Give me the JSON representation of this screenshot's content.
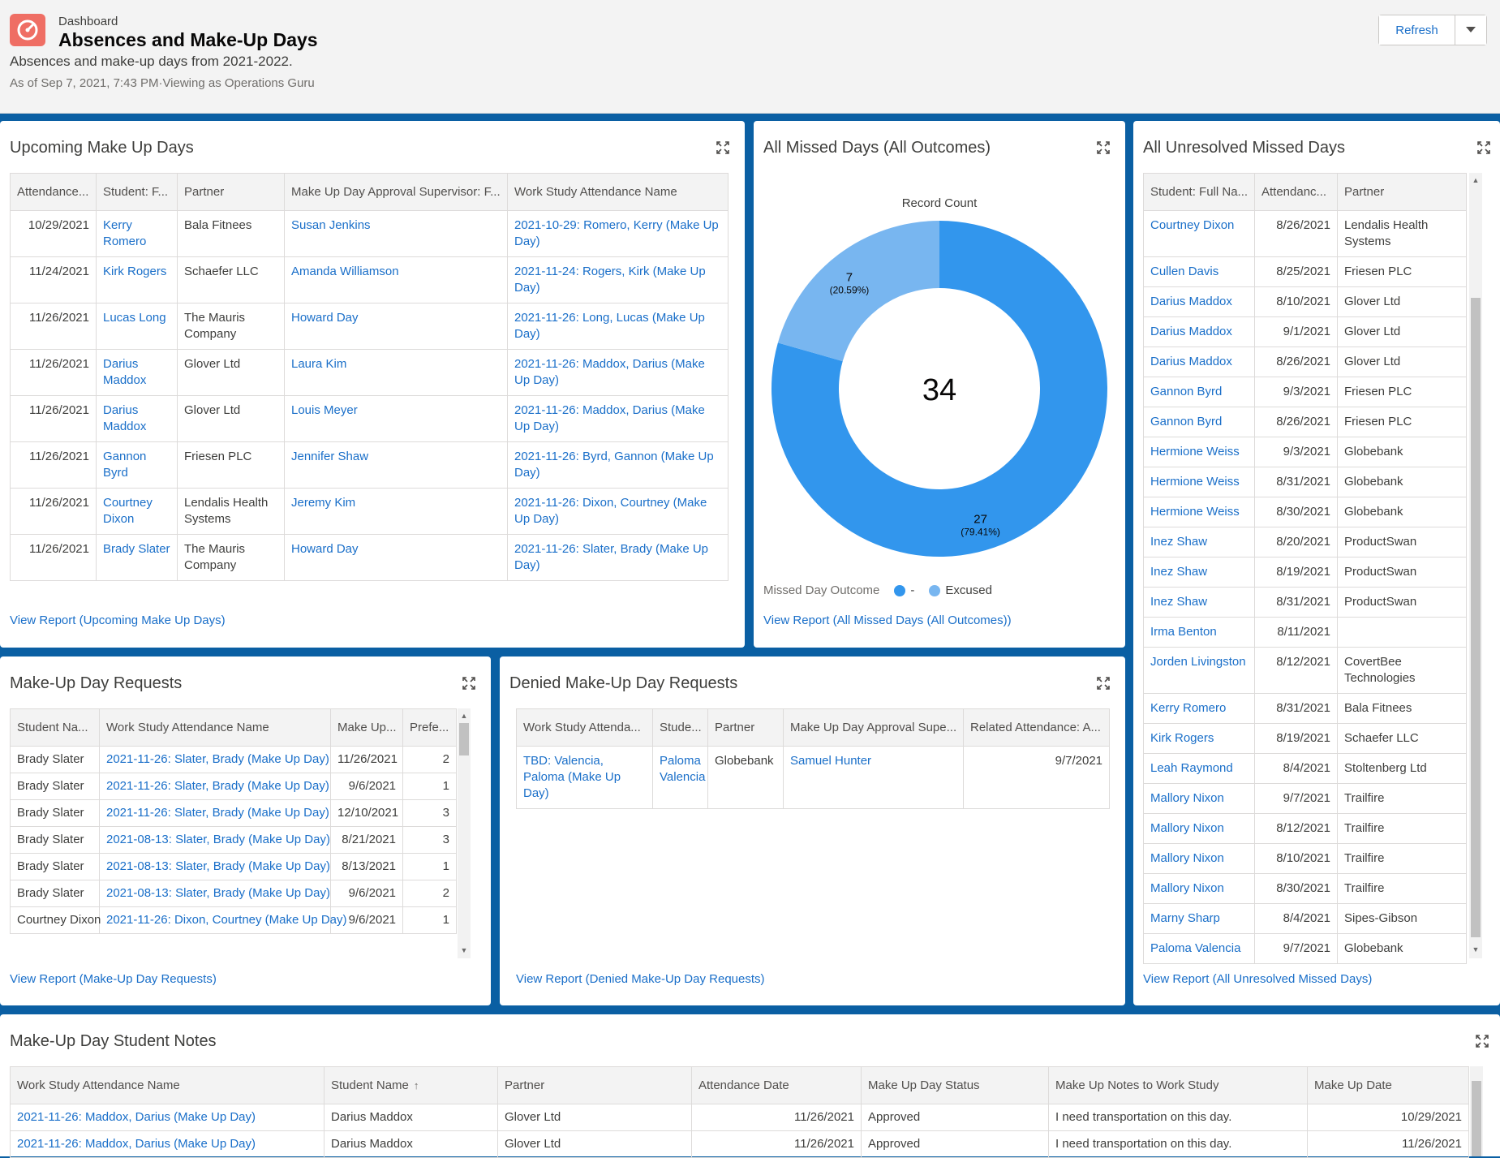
{
  "header": {
    "kicker": "Dashboard",
    "title": "Absences and Make-Up Days",
    "description": "Absences and make-up days from 2021-2022.",
    "as_of": "As of Sep 7, 2021, 7:43 PM·Viewing as Operations Guru",
    "refresh_label": "Refresh"
  },
  "colors": {
    "accent": "#1a6fc9",
    "band": "#0a5fa3",
    "logo": "#ef6e64",
    "donut_dark": "#3296ed",
    "donut_light": "#78b6f0"
  },
  "upcoming": {
    "title": "Upcoming Make Up Days",
    "columns": [
      "Attendance...",
      "Student: F...",
      "Partner",
      "Make Up Day Approval Supervisor: F...",
      "Work Study Attendance Name"
    ],
    "rows": [
      [
        "10/29/2021",
        "Kerry Romero",
        "Bala Fitnees",
        "Susan Jenkins",
        "2021-10-29: Romero, Kerry (Make Up Day)"
      ],
      [
        "11/24/2021",
        "Kirk Rogers",
        "Schaefer LLC",
        "Amanda Williamson",
        "2021-11-24: Rogers, Kirk (Make Up Day)"
      ],
      [
        "11/26/2021",
        "Lucas Long",
        "The Mauris Company",
        "Howard Day",
        "2021-11-26: Long, Lucas (Make Up Day)"
      ],
      [
        "11/26/2021",
        "Darius Maddox",
        "Glover Ltd",
        "Laura Kim",
        "2021-11-26: Maddox, Darius (Make Up Day)"
      ],
      [
        "11/26/2021",
        "Darius Maddox",
        "Glover Ltd",
        "Louis Meyer",
        "2021-11-26: Maddox, Darius (Make Up Day)"
      ],
      [
        "11/26/2021",
        "Gannon Byrd",
        "Friesen PLC",
        "Jennifer Shaw",
        "2021-11-26: Byrd, Gannon (Make Up Day)"
      ],
      [
        "11/26/2021",
        "Courtney Dixon",
        "Lendalis Health Systems",
        "Jeremy Kim",
        "2021-11-26: Dixon, Courtney (Make Up Day)"
      ],
      [
        "11/26/2021",
        "Brady Slater",
        "The Mauris Company",
        "Howard Day",
        "2021-11-26: Slater, Brady (Make Up Day)"
      ]
    ],
    "view_report": "View Report (Upcoming Make Up Days)"
  },
  "missed": {
    "title": "All Missed Days (All Outcomes)",
    "chart_label": "Record Count",
    "total": "34",
    "legend_title": "Missed Day Outcome",
    "view_report": "View Report (All Missed Days (All Outcomes))"
  },
  "chart_data": {
    "type": "pie",
    "title": "All Missed Days (All Outcomes)",
    "measure": "Record Count",
    "total": 34,
    "legend_title": "Missed Day Outcome",
    "slices": [
      {
        "name": "-",
        "value": 27,
        "percent_label": "(79.41%)",
        "color": "#3296ed"
      },
      {
        "name": "Excused",
        "value": 7,
        "percent_label": "(20.59%)",
        "color": "#78b6f0"
      }
    ]
  },
  "unresolved": {
    "title": "All Unresolved Missed Days",
    "columns": [
      "Student: Full Na...",
      "Attendanc...",
      "Partner"
    ],
    "rows": [
      [
        "Courtney Dixon",
        "8/26/2021",
        "Lendalis Health Systems"
      ],
      [
        "Cullen Davis",
        "8/25/2021",
        "Friesen PLC"
      ],
      [
        "Darius Maddox",
        "8/10/2021",
        "Glover Ltd"
      ],
      [
        "Darius Maddox",
        "9/1/2021",
        "Glover Ltd"
      ],
      [
        "Darius Maddox",
        "8/26/2021",
        "Glover Ltd"
      ],
      [
        "Gannon Byrd",
        "9/3/2021",
        "Friesen PLC"
      ],
      [
        "Gannon Byrd",
        "8/26/2021",
        "Friesen PLC"
      ],
      [
        "Hermione Weiss",
        "9/3/2021",
        "Globebank"
      ],
      [
        "Hermione Weiss",
        "8/31/2021",
        "Globebank"
      ],
      [
        "Hermione Weiss",
        "8/30/2021",
        "Globebank"
      ],
      [
        "Inez Shaw",
        "8/20/2021",
        "ProductSwan"
      ],
      [
        "Inez Shaw",
        "8/19/2021",
        "ProductSwan"
      ],
      [
        "Inez Shaw",
        "8/31/2021",
        "ProductSwan"
      ],
      [
        "Irma Benton",
        "8/11/2021",
        ""
      ],
      [
        "Jorden Livingston",
        "8/12/2021",
        "CovertBee Technologies"
      ],
      [
        "Kerry Romero",
        "8/31/2021",
        "Bala Fitnees"
      ],
      [
        "Kirk Rogers",
        "8/19/2021",
        "Schaefer LLC"
      ],
      [
        "Leah Raymond",
        "8/4/2021",
        "Stoltenberg Ltd"
      ],
      [
        "Mallory Nixon",
        "9/7/2021",
        "Trailfire"
      ],
      [
        "Mallory Nixon",
        "8/12/2021",
        "Trailfire"
      ],
      [
        "Mallory Nixon",
        "8/10/2021",
        "Trailfire"
      ],
      [
        "Mallory Nixon",
        "8/30/2021",
        "Trailfire"
      ],
      [
        "Marny Sharp",
        "8/4/2021",
        "Sipes-Gibson"
      ],
      [
        "Paloma Valencia",
        "9/7/2021",
        "Globebank"
      ]
    ],
    "view_report": "View Report (All Unresolved Missed Days)"
  },
  "requests": {
    "title": "Make-Up Day Requests",
    "columns": [
      "Student Na...",
      "Work Study Attendance Name",
      "Make Up...",
      "Prefe..."
    ],
    "rows": [
      [
        "Brady Slater",
        "2021-11-26: Slater, Brady (Make Up Day)",
        "11/26/2021",
        "2"
      ],
      [
        "Brady Slater",
        "2021-11-26: Slater, Brady (Make Up Day)",
        "9/6/2021",
        "1"
      ],
      [
        "Brady Slater",
        "2021-11-26: Slater, Brady (Make Up Day)",
        "12/10/2021",
        "3"
      ],
      [
        "Brady Slater",
        "2021-08-13: Slater, Brady (Make Up Day)",
        "8/21/2021",
        "3"
      ],
      [
        "Brady Slater",
        "2021-08-13: Slater, Brady (Make Up Day)",
        "8/13/2021",
        "1"
      ],
      [
        "Brady Slater",
        "2021-08-13: Slater, Brady (Make Up Day)",
        "9/6/2021",
        "2"
      ],
      [
        "Courtney Dixon",
        "2021-11-26: Dixon, Courtney (Make Up Day)",
        "9/6/2021",
        "1"
      ]
    ],
    "view_report": "View Report (Make-Up Day Requests)"
  },
  "denied": {
    "title": "Denied Make-Up Day Requests",
    "columns": [
      "Work Study Attenda...",
      "Stude...",
      "Partner",
      "Make Up Day Approval Supe...",
      "Related Attendance: A..."
    ],
    "rows": [
      [
        "TBD: Valencia, Paloma (Make Up Day)",
        "Paloma Valencia",
        "Globebank",
        "Samuel Hunter",
        "9/7/2021"
      ]
    ],
    "view_report": "View Report (Denied Make-Up Day Requests)"
  },
  "notes": {
    "title": "Make-Up Day Student Notes",
    "columns": [
      "Work Study Attendance Name",
      "Student Name",
      "Partner",
      "Attendance Date",
      "Make Up Day Status",
      "Make Up Notes to Work Study",
      "Make Up Date"
    ],
    "rows": [
      [
        "2021-11-26: Maddox, Darius (Make Up Day)",
        "Darius Maddox",
        "Glover Ltd",
        "11/26/2021",
        "Approved",
        "I need transportation on this day.",
        "10/29/2021"
      ],
      [
        "2021-11-26: Maddox, Darius (Make Up Day)",
        "Darius Maddox",
        "Glover Ltd",
        "11/26/2021",
        "Approved",
        "I need transportation on this day.",
        "11/26/2021"
      ]
    ]
  }
}
